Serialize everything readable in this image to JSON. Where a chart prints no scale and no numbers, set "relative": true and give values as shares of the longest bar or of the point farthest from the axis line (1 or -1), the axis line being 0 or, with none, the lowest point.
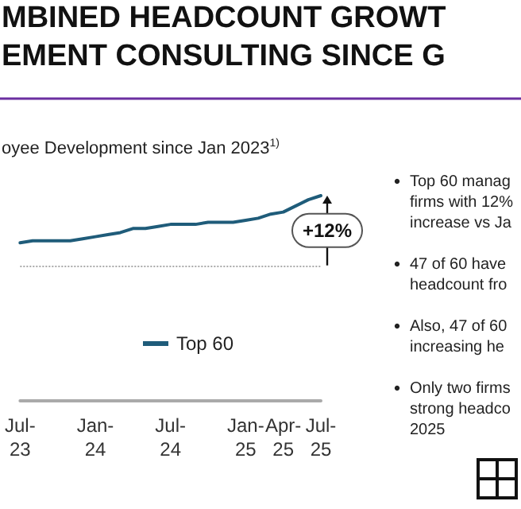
{
  "chart_data": {
    "type": "line",
    "title": "MBINED HEADCOUNT GROWT\nEMENT CONSULTING SINCE G",
    "subtitle": "oyee Development since Jan 2023$^{1)}$",
    "relative": true,
    "categories": [
      "Jul-23",
      null,
      null,
      null,
      null,
      null,
      "Jan-24",
      null,
      null,
      null,
      null,
      null,
      "Jul-24",
      null,
      null,
      null,
      null,
      null,
      "Jan-25",
      null,
      null,
      "Apr-25",
      null,
      null,
      "Jul-25"
    ],
    "series": [
      {
        "name": "Top 60",
        "color": "#1f5c7a",
        "values": [
          0.77,
          0.78,
          0.78,
          0.78,
          0.78,
          0.79,
          0.8,
          0.81,
          0.82,
          0.84,
          0.84,
          0.85,
          0.86,
          0.86,
          0.86,
          0.87,
          0.87,
          0.87,
          0.88,
          0.89,
          0.91,
          0.92,
          0.95,
          0.98,
          1.0
        ]
      }
    ],
    "ref_lines": [
      {
        "axis": "y",
        "value": 0.66,
        "color": "#aaaaaa",
        "line_style": "dotted"
      }
    ],
    "annotations": [
      "+12%",
      "Top 60 manag\nfirms with 12%\nincrease vs Ja",
      "47 of 60 have\nheadcount fro",
      "Also, 47 of 60\nincreasing he",
      "Only two firms\nstrong headco\n2025"
    ],
    "legend": "bottom",
    "marker": "none",
    "line_style": "solid",
    "grid": false
  }
}
